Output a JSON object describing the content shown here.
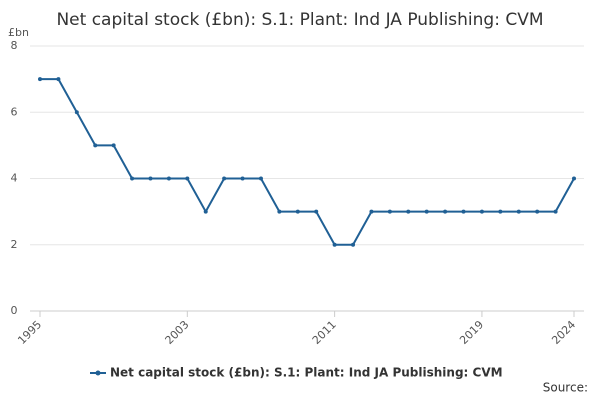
{
  "chart_data": {
    "type": "line",
    "title": "Net capital stock (£bn): S.1: Plant: Ind JA Publishing: CVM",
    "y_unit": "£bn",
    "source": "Source:",
    "x": [
      1995,
      1996,
      1997,
      1998,
      1999,
      2000,
      2001,
      2002,
      2003,
      2004,
      2005,
      2006,
      2007,
      2008,
      2009,
      2010,
      2011,
      2012,
      2013,
      2014,
      2015,
      2016,
      2017,
      2018,
      2019,
      2020,
      2021,
      2022,
      2023,
      2024
    ],
    "series": [
      {
        "name": "Net capital stock (£bn): S.1: Plant: Ind JA Publishing: CVM",
        "color": "#206095",
        "values": [
          7,
          7,
          6,
          5,
          5,
          4,
          4,
          4,
          4,
          3,
          4,
          4,
          4,
          3,
          3,
          3,
          2,
          2,
          3,
          3,
          3,
          3,
          3,
          3,
          3,
          3,
          3,
          3,
          3,
          4
        ]
      }
    ],
    "xlim": [
      1995,
      2024
    ],
    "xticks": [
      1995,
      2003,
      2011,
      2019,
      2024
    ],
    "ylim": [
      0,
      8
    ],
    "yticks": [
      0,
      2,
      4,
      6,
      8
    ],
    "grid": true
  }
}
